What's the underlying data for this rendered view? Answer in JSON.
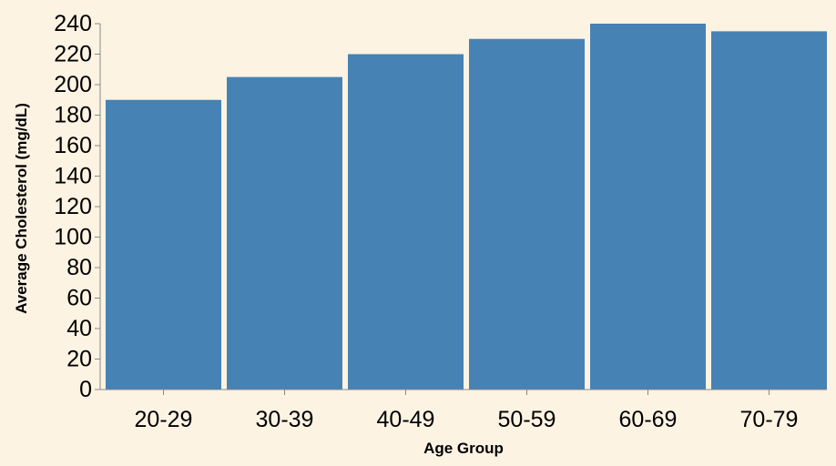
{
  "chart_data": {
    "type": "bar",
    "title": "",
    "xlabel": "Age Group",
    "ylabel": "Average Cholesterol (mg/dL)",
    "categories": [
      "20-29",
      "30-39",
      "40-49",
      "50-59",
      "60-69",
      "70-79"
    ],
    "values": [
      190,
      205,
      220,
      230,
      240,
      235
    ],
    "ylim": [
      0,
      240
    ],
    "yticks": [
      0,
      20,
      40,
      60,
      80,
      100,
      120,
      140,
      160,
      180,
      200,
      220,
      240
    ],
    "grid": false,
    "legend": "none",
    "colors": {
      "bar": "#4682b4",
      "background": "#fdf3e3",
      "axis": "#888888"
    }
  }
}
